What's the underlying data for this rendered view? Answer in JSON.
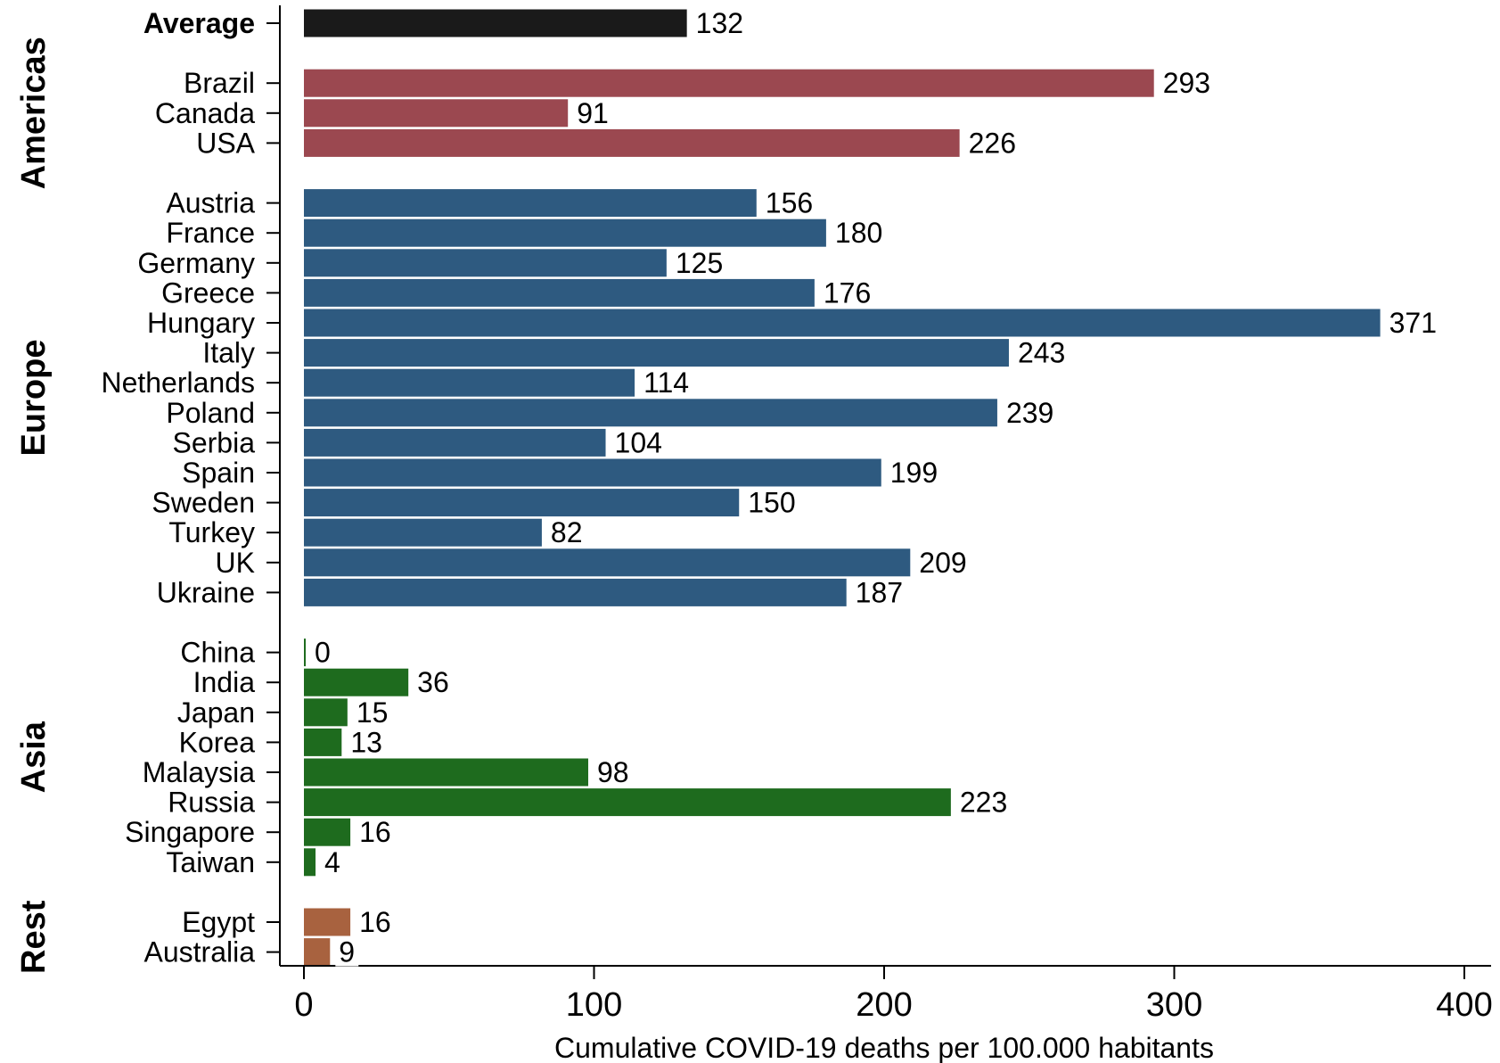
{
  "chart_data": {
    "type": "bar",
    "orientation": "horizontal",
    "xlabel": "Cumulative COVID-19 deaths per 100.000 habitants",
    "xlim": [
      0,
      400
    ],
    "xticks": [
      0,
      100,
      200,
      300,
      400
    ],
    "grid": false,
    "average": {
      "label": "Average",
      "value": 132,
      "color": "#1a1a1a"
    },
    "groups": [
      {
        "name": "Americas",
        "color": "#9b4850",
        "items": [
          {
            "label": "Brazil",
            "value": 293
          },
          {
            "label": "Canada",
            "value": 91
          },
          {
            "label": "USA",
            "value": 226
          }
        ]
      },
      {
        "name": "Europe",
        "color": "#2e5a80",
        "items": [
          {
            "label": "Austria",
            "value": 156
          },
          {
            "label": "France",
            "value": 180
          },
          {
            "label": "Germany",
            "value": 125
          },
          {
            "label": "Greece",
            "value": 176
          },
          {
            "label": "Hungary",
            "value": 371
          },
          {
            "label": "Italy",
            "value": 243
          },
          {
            "label": "Netherlands",
            "value": 114
          },
          {
            "label": "Poland",
            "value": 239
          },
          {
            "label": "Serbia",
            "value": 104
          },
          {
            "label": "Spain",
            "value": 199
          },
          {
            "label": "Sweden",
            "value": 150
          },
          {
            "label": "Turkey",
            "value": 82
          },
          {
            "label": "UK",
            "value": 209
          },
          {
            "label": "Ukraine",
            "value": 187
          }
        ]
      },
      {
        "name": "Asia",
        "color": "#1e6b1e",
        "items": [
          {
            "label": "China",
            "value": 0
          },
          {
            "label": "India",
            "value": 36
          },
          {
            "label": "Japan",
            "value": 15
          },
          {
            "label": "Korea",
            "value": 13
          },
          {
            "label": "Malaysia",
            "value": 98
          },
          {
            "label": "Russia",
            "value": 223
          },
          {
            "label": "Singapore",
            "value": 16
          },
          {
            "label": "Taiwan",
            "value": 4
          }
        ]
      },
      {
        "name": "Rest",
        "color": "#a8623f",
        "items": [
          {
            "label": "Egypt",
            "value": 16
          },
          {
            "label": "Australia",
            "value": 9
          }
        ]
      }
    ]
  }
}
